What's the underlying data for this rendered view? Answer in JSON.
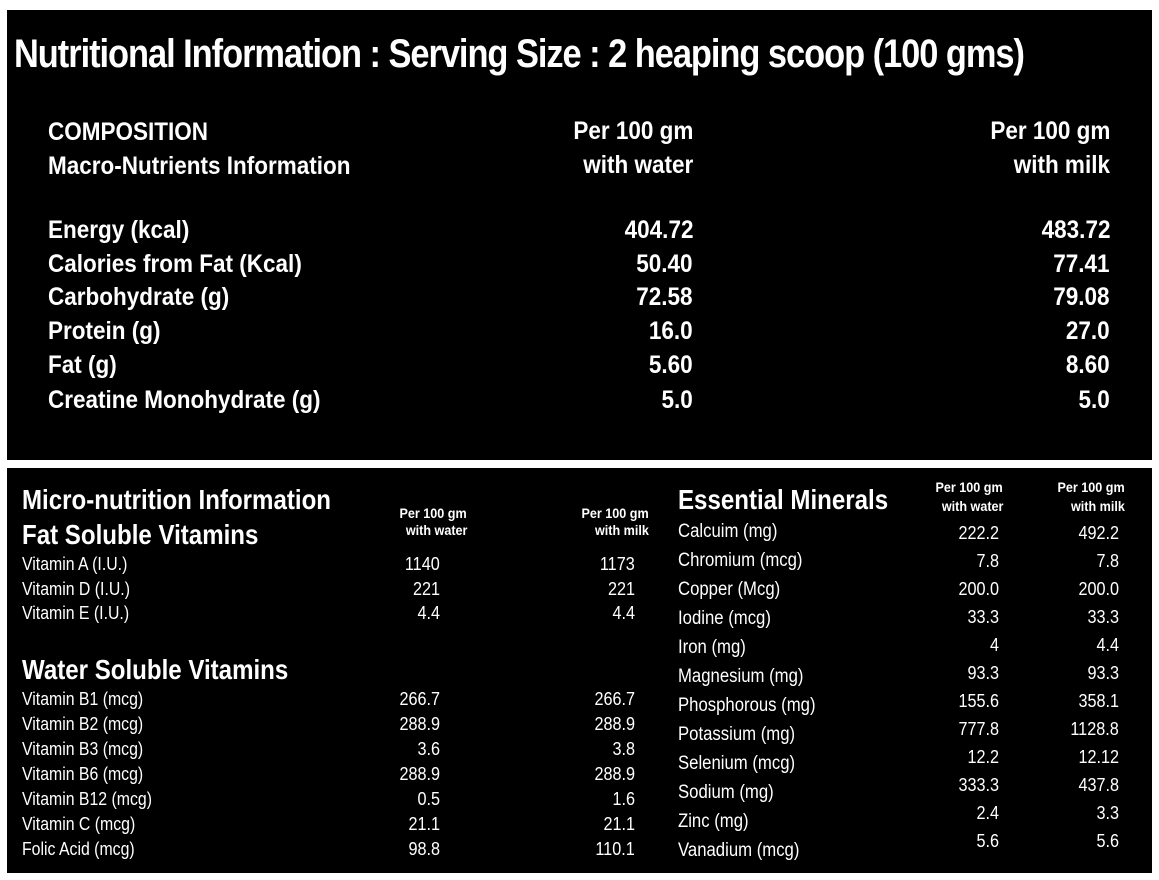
{
  "title": "Nutritional Information : Serving Size :  2 heaping scoop (100 gms)",
  "macro": {
    "heading1": "COMPOSITION",
    "heading2": "Macro-Nutrients Information",
    "col_water_line1": "Per 100 gm",
    "col_water_line2": "with water",
    "col_milk_line1": "Per 100 gm",
    "col_milk_line2": "with milk",
    "rows": [
      {
        "label": "Energy (kcal)",
        "water": "404.72",
        "milk": "483.72"
      },
      {
        "label": "Calories from Fat (Kcal)",
        "water": "50.40",
        "milk": "77.41"
      },
      {
        "label": "Carbohydrate  (g)",
        "water": "72.58",
        "milk": "79.08"
      },
      {
        "label": "Protein (g)",
        "water": "16.0",
        "milk": "27.0"
      },
      {
        "label": "Fat (g)",
        "water": "5.60",
        "milk": "8.60"
      },
      {
        "label": "Creatine Monohydrate (g)",
        "water": "5.0",
        "milk": "5.0"
      }
    ]
  },
  "micro": {
    "title": "Micro-nutrition Information",
    "fat_title": "Fat Soluble Vitamins",
    "col_water_line1": "Per 100 gm",
    "col_water_line2": "with water",
    "col_milk_line1": "Per 100 gm",
    "col_milk_line2": "with milk",
    "fat_rows": [
      {
        "label": "Vitamin A (I.U.)",
        "water": "1140",
        "milk": "1173"
      },
      {
        "label": "Vitamin D (I.U.)",
        "water": "221",
        "milk": "221"
      },
      {
        "label": "Vitamin E (I.U.)",
        "water": "4.4",
        "milk": "4.4"
      }
    ],
    "water_title": "Water Soluble Vitamins",
    "water_rows": [
      {
        "label": "Vitamin B1 (mcg)",
        "water": "266.7",
        "milk": "266.7"
      },
      {
        "label": "Vitamin B2 (mcg)",
        "water": "288.9",
        "milk": "288.9"
      },
      {
        "label": "Vitamin B3 (mcg)",
        "water": "3.6",
        "milk": "3.8"
      },
      {
        "label": "Vitamin B6 (mcg)",
        "water": "288.9",
        "milk": "288.9"
      },
      {
        "label": "Vitamin B12 (mcg)",
        "water": "0.5",
        "milk": "1.6"
      },
      {
        "label": "Vitamin C (mcg)",
        "water": "21.1",
        "milk": "21.1"
      },
      {
        "label": "Folic Acid (mcg)",
        "water": "98.8",
        "milk": "110.1"
      }
    ]
  },
  "minerals": {
    "title": "Essential Minerals",
    "col_water_line1": "Per 100 gm",
    "col_water_line2": "with water",
    "col_milk_line1": "Per 100 gm",
    "col_milk_line2": "with milk",
    "rows": [
      {
        "label": "Calcuim (mg)",
        "water": "222.2",
        "milk": "492.2"
      },
      {
        "label": "Chromium (mcg)",
        "water": "7.8",
        "milk": "7.8"
      },
      {
        "label": "Copper (Mcg)",
        "water": "200.0",
        "milk": "200.0"
      },
      {
        "label": "Iodine (mcg)",
        "water": "33.3",
        "milk": "33.3"
      },
      {
        "label": "Iron (mg)",
        "water": "4",
        "milk": "4.4"
      },
      {
        "label": "Magnesium (mg)",
        "water": "93.3",
        "milk": "93.3"
      },
      {
        "label": "Phosphorous (mg)",
        "water": "155.6",
        "milk": "358.1"
      },
      {
        "label": "Potassium (mg)",
        "water": "777.8",
        "milk": "1128.8"
      },
      {
        "label": "Selenium (mcg)",
        "water": "12.2",
        "milk": "12.12"
      },
      {
        "label": "Sodium (mg)",
        "water": "333.3",
        "milk": "437.8"
      },
      {
        "label": "Zinc (mg)",
        "water": "2.4",
        "milk": "3.3"
      },
      {
        "label": "Vanadium (mcg)",
        "water": "5.6",
        "milk": "5.6"
      }
    ]
  }
}
